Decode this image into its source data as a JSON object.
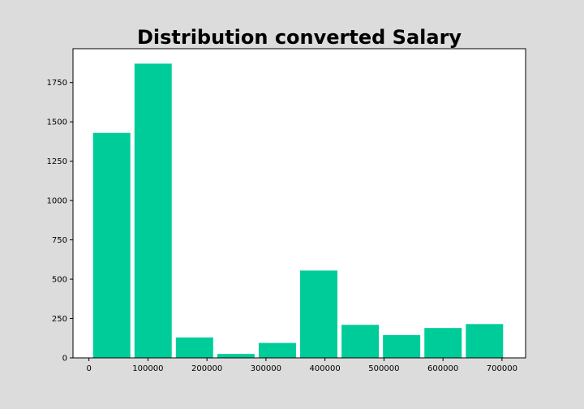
{
  "chart_data": {
    "type": "bar",
    "title": "Distribution converted Salary",
    "xlabel": "",
    "ylabel": "",
    "bar_color": "#00cc99",
    "background": "#dcdcdc",
    "plot_background": "#ffffff",
    "grid": false,
    "xlim": [
      -27000,
      740000
    ],
    "ylim": [
      0,
      1965
    ],
    "x_ticks": [
      0,
      100000,
      200000,
      300000,
      400000,
      500000,
      600000,
      700000
    ],
    "y_ticks": [
      0,
      250,
      500,
      750,
      1000,
      1250,
      1500,
      1750
    ],
    "bins": [
      {
        "start": 7000,
        "end": 70200,
        "value": 1430
      },
      {
        "start": 77200,
        "end": 140300,
        "value": 1870
      },
      {
        "start": 147300,
        "end": 210500,
        "value": 130
      },
      {
        "start": 217500,
        "end": 280700,
        "value": 25
      },
      {
        "start": 287700,
        "end": 350900,
        "value": 95
      },
      {
        "start": 357900,
        "end": 421100,
        "value": 555
      },
      {
        "start": 428100,
        "end": 491300,
        "value": 210
      },
      {
        "start": 498300,
        "end": 561500,
        "value": 145
      },
      {
        "start": 568500,
        "end": 631700,
        "value": 190
      },
      {
        "start": 638700,
        "end": 701900,
        "value": 215
      }
    ]
  }
}
